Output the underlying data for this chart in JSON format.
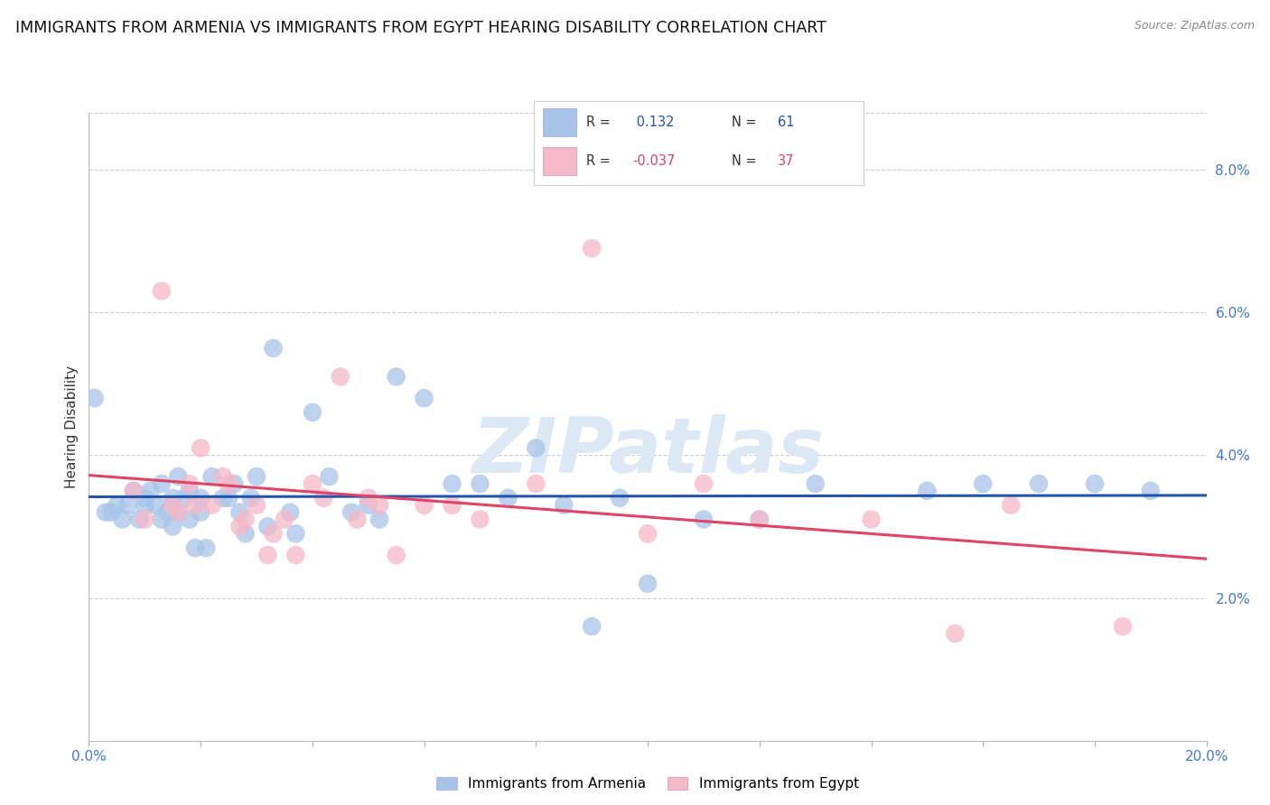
{
  "title": "IMMIGRANTS FROM ARMENIA VS IMMIGRANTS FROM EGYPT HEARING DISABILITY CORRELATION CHART",
  "source": "Source: ZipAtlas.com",
  "ylabel": "Hearing Disability",
  "xlim": [
    0.0,
    0.2
  ],
  "ylim": [
    0.0,
    0.088
  ],
  "xticks": [
    0.0,
    0.02,
    0.04,
    0.06,
    0.08,
    0.1,
    0.12,
    0.14,
    0.16,
    0.18,
    0.2
  ],
  "ytick_vals": [
    0.02,
    0.04,
    0.06,
    0.08
  ],
  "ytick_labels": [
    "2.0%",
    "4.0%",
    "6.0%",
    "8.0%"
  ],
  "armenia_R": 0.132,
  "armenia_N": 61,
  "egypt_R": -0.037,
  "egypt_N": 37,
  "armenia_color": "#a8c4e8",
  "egypt_color": "#f5b8c8",
  "armenia_line_color": "#2255aa",
  "egypt_line_color": "#dd4466",
  "legend_label_armenia": "Immigrants from Armenia",
  "legend_label_egypt": "Immigrants from Egypt",
  "watermark": "ZIPatlas",
  "background_color": "#ffffff",
  "grid_color": "#cccccc",
  "title_fontsize": 12.5,
  "axis_label_fontsize": 11,
  "tick_fontsize": 11,
  "legend_fontsize": 11,
  "armenia_x": [
    0.001,
    0.003,
    0.004,
    0.005,
    0.006,
    0.007,
    0.008,
    0.009,
    0.01,
    0.01,
    0.011,
    0.012,
    0.013,
    0.013,
    0.014,
    0.015,
    0.015,
    0.016,
    0.016,
    0.017,
    0.018,
    0.018,
    0.019,
    0.02,
    0.02,
    0.021,
    0.022,
    0.024,
    0.025,
    0.026,
    0.027,
    0.028,
    0.029,
    0.03,
    0.032,
    0.033,
    0.036,
    0.037,
    0.04,
    0.043,
    0.047,
    0.05,
    0.052,
    0.055,
    0.06,
    0.065,
    0.07,
    0.075,
    0.08,
    0.085,
    0.09,
    0.095,
    0.1,
    0.11,
    0.12,
    0.13,
    0.15,
    0.16,
    0.17,
    0.18,
    0.19
  ],
  "armenia_y": [
    0.048,
    0.032,
    0.032,
    0.033,
    0.031,
    0.033,
    0.035,
    0.031,
    0.034,
    0.033,
    0.035,
    0.033,
    0.036,
    0.031,
    0.032,
    0.034,
    0.03,
    0.037,
    0.032,
    0.034,
    0.035,
    0.031,
    0.027,
    0.034,
    0.032,
    0.027,
    0.037,
    0.034,
    0.034,
    0.036,
    0.032,
    0.029,
    0.034,
    0.037,
    0.03,
    0.055,
    0.032,
    0.029,
    0.046,
    0.037,
    0.032,
    0.033,
    0.031,
    0.051,
    0.048,
    0.036,
    0.036,
    0.034,
    0.041,
    0.033,
    0.016,
    0.034,
    0.022,
    0.031,
    0.031,
    0.036,
    0.035,
    0.036,
    0.036,
    0.036,
    0.035
  ],
  "egypt_x": [
    0.008,
    0.01,
    0.013,
    0.015,
    0.016,
    0.018,
    0.019,
    0.022,
    0.025,
    0.027,
    0.028,
    0.03,
    0.033,
    0.035,
    0.037,
    0.04,
    0.042,
    0.045,
    0.048,
    0.05,
    0.052,
    0.055,
    0.065,
    0.09,
    0.1,
    0.11,
    0.12,
    0.14,
    0.155,
    0.165,
    0.185,
    0.02,
    0.024,
    0.06,
    0.07,
    0.08,
    0.032
  ],
  "egypt_y": [
    0.035,
    0.031,
    0.063,
    0.033,
    0.032,
    0.036,
    0.033,
    0.033,
    0.036,
    0.03,
    0.031,
    0.033,
    0.029,
    0.031,
    0.026,
    0.036,
    0.034,
    0.051,
    0.031,
    0.034,
    0.033,
    0.026,
    0.033,
    0.069,
    0.029,
    0.036,
    0.031,
    0.031,
    0.015,
    0.033,
    0.016,
    0.041,
    0.037,
    0.033,
    0.031,
    0.036,
    0.026
  ]
}
